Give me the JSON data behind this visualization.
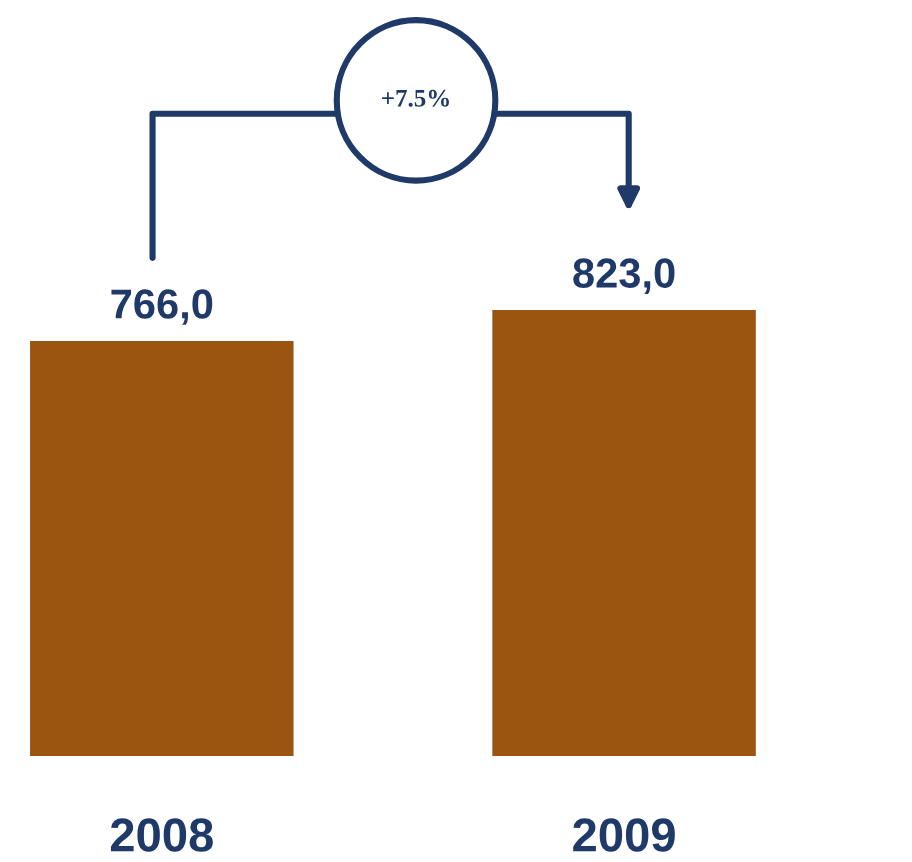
{
  "chart_data": {
    "type": "bar",
    "categories": [
      "2008",
      "2009"
    ],
    "values": [
      766,
      823
    ],
    "color": "#9a5510",
    "value_labels": [
      "766,0",
      "823,0"
    ],
    "annotations": [
      "+7.5%"
    ]
  }
}
